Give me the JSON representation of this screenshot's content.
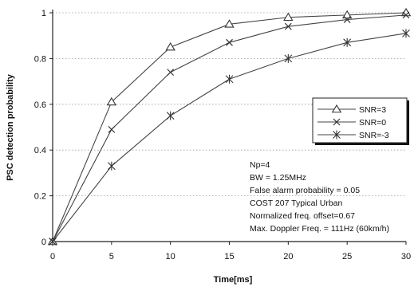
{
  "chart_data": {
    "type": "line",
    "title": "",
    "xlabel": "Time[ms]",
    "ylabel": "PSC detection probability",
    "xlim": [
      0,
      30
    ],
    "ylim": [
      0,
      1
    ],
    "x_ticks": [
      "0",
      "5",
      "10",
      "15",
      "20",
      "25",
      "30"
    ],
    "y_ticks": [
      "0",
      "0.2",
      "0.4",
      "0.6",
      "0.8",
      "1"
    ],
    "grid": "horizontal dotted",
    "legend_position": "right",
    "x": [
      0,
      5,
      10,
      15,
      20,
      25,
      30
    ],
    "series": [
      {
        "name": "SNR=3",
        "marker": "triangle",
        "values": [
          0.0,
          0.61,
          0.85,
          0.95,
          0.98,
          0.99,
          1.0
        ]
      },
      {
        "name": "SNR=0",
        "marker": "x",
        "values": [
          0.0,
          0.49,
          0.74,
          0.87,
          0.94,
          0.97,
          0.99
        ]
      },
      {
        "name": "SNR=-3",
        "marker": "asterisk",
        "values": [
          0.0,
          0.33,
          0.55,
          0.71,
          0.8,
          0.87,
          0.91
        ]
      }
    ],
    "annotations": [
      "Np=4",
      "BW = 1.25MHz",
      "False alarm probability = 0.05",
      "COST 207 Typical Urban",
      "Normalized freq. offset=0.67",
      "Max. Doppler Freq. = 111Hz (60km/h)"
    ]
  }
}
